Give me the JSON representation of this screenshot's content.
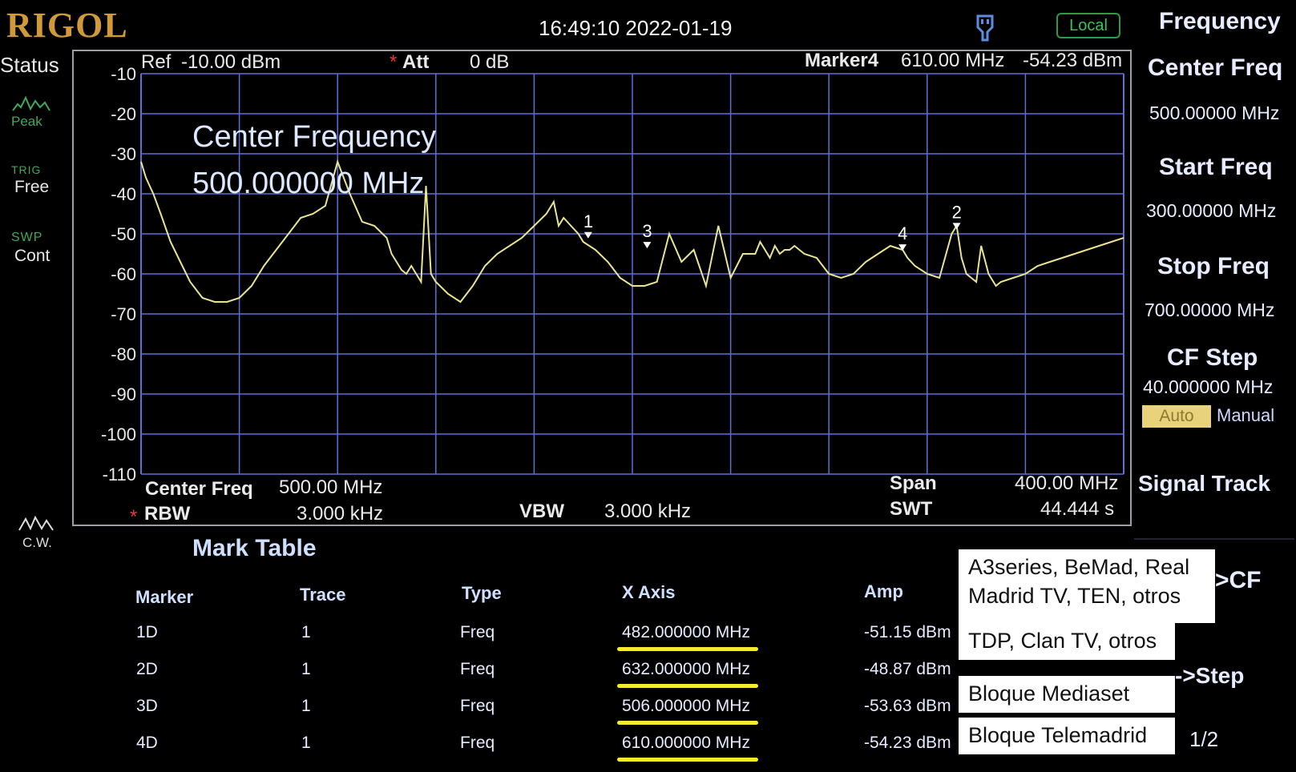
{
  "header": {
    "logo": "RIGOL",
    "datetime": "16:49:10 2022-01-19",
    "local_badge": "Local"
  },
  "status_panel": {
    "title": "Status",
    "peak_label": "Peak",
    "trig_small": "TRIG",
    "trig_value": "Free",
    "swp_small": "SWP",
    "swp_value": "Cont",
    "cw_label": "C.W."
  },
  "screen": {
    "ref_label": "Ref",
    "ref_value": "-10.00 dBm",
    "att_star": "*",
    "att_label": "Att",
    "att_value": "0 dB",
    "marker_label": "Marker4",
    "marker_freq": "610.00 MHz",
    "marker_amp": "-54.23 dBm",
    "overlay_title": "Center Frequency",
    "overlay_value": "500.000000 MHz",
    "bottom": {
      "cf_label": "Center Freq",
      "cf_value": "500.00 MHz",
      "rbw_star": "*",
      "rbw_label": "RBW",
      "rbw_value": "3.000 kHz",
      "vbw_label": "VBW",
      "vbw_value": "3.000 kHz",
      "span_label": "Span",
      "span_value": "400.00 MHz",
      "swt_label": "SWT",
      "swt_value": "44.444 s"
    }
  },
  "chart_data": {
    "type": "line",
    "xlim": [
      300,
      700
    ],
    "ylim": [
      -110,
      -10
    ],
    "y_ticks": [
      -10,
      -20,
      -30,
      -40,
      -50,
      -60,
      -70,
      -80,
      -90,
      -100,
      -110
    ],
    "grid": true,
    "series": [
      {
        "x": [
          300,
          302,
          305,
          308,
          312,
          316,
          320,
          325,
          330,
          335,
          340,
          345,
          350,
          355,
          360,
          365,
          370,
          375,
          380,
          385,
          390,
          395,
          400,
          402,
          404,
          406,
          408,
          410,
          412,
          414,
          416,
          418,
          420,
          425,
          430,
          435,
          440,
          445,
          450,
          455,
          460,
          465,
          468,
          470,
          472,
          475,
          478,
          480,
          485,
          490,
          495,
          500,
          505,
          510,
          515,
          520,
          525,
          530,
          535,
          540,
          545,
          550,
          552,
          554,
          556,
          558,
          560,
          562,
          564,
          566,
          568,
          570,
          575,
          580,
          585,
          590,
          595,
          600,
          605,
          610,
          612,
          615,
          620,
          625,
          630,
          632,
          634,
          636,
          640,
          642,
          645,
          648,
          650,
          655,
          660,
          665,
          670,
          675,
          680,
          685,
          690,
          695,
          700
        ],
        "y": [
          -32,
          -36,
          -40,
          -45,
          -52,
          -57,
          -62,
          -66,
          -67,
          -67,
          -66,
          -63,
          -58,
          -54,
          -50,
          -46,
          -45,
          -43,
          -32,
          -40,
          -47,
          -48,
          -51,
          -55,
          -57,
          -59,
          -60,
          -58,
          -60,
          -62,
          -38,
          -60,
          -62,
          -65,
          -67,
          -63,
          -58,
          -55,
          -53,
          -51,
          -48,
          -45,
          -42,
          -48,
          -46,
          -48,
          -50,
          -52,
          -54,
          -57,
          -61,
          -63,
          -63,
          -62,
          -50,
          -57,
          -54,
          -63,
          -48,
          -61,
          -55,
          -55,
          -52,
          -54,
          -56,
          -53,
          -55,
          -54,
          -54,
          -53,
          -54,
          -55,
          -56,
          -60,
          -61,
          -60,
          -57,
          -55,
          -53,
          -54,
          -56,
          -58,
          -60,
          -61,
          -50,
          -48,
          -56,
          -60,
          -62,
          -53,
          -60,
          -63,
          -62,
          -61,
          -60,
          -58,
          -57,
          -56,
          -55,
          -54,
          -53,
          -52,
          -51
        ]
      }
    ],
    "markers": [
      {
        "label": "1",
        "x": 482,
        "y": -51.15
      },
      {
        "label": "2",
        "x": 632,
        "y": -48.87
      },
      {
        "label": "3",
        "x": 506,
        "y": -53.63
      },
      {
        "label": "4",
        "x": 610,
        "y": -54.23
      }
    ]
  },
  "menu": {
    "title": "Frequency",
    "center_freq_label": "Center Freq",
    "center_freq_value": "500.00000 MHz",
    "start_freq_label": "Start Freq",
    "start_freq_value": "300.00000 MHz",
    "stop_freq_label": "Stop Freq",
    "stop_freq_value": "700.00000 MHz",
    "cf_step_label": "CF Step",
    "cf_step_value": "40.000000 MHz",
    "auto_label": "Auto",
    "manual_label": "Manual",
    "signal_track_label": "Signal Track",
    "to_cf_label": ">CF",
    "to_step_label": "->Step",
    "page_label": "1/2"
  },
  "mark_table": {
    "title": "Mark Table",
    "headers": [
      "Marker",
      "Trace",
      "Type",
      "X Axis",
      "Amp"
    ],
    "rows": [
      [
        "1D",
        "1",
        "Freq",
        "482.000000 MHz",
        "-51.15 dBm"
      ],
      [
        "2D",
        "1",
        "Freq",
        "632.000000 MHz",
        "-48.87 dBm"
      ],
      [
        "3D",
        "1",
        "Freq",
        "506.000000 MHz",
        "-53.63 dBm"
      ],
      [
        "4D",
        "1",
        "Freq",
        "610.000000 MHz",
        "-54.23 dBm"
      ]
    ]
  },
  "annotations": {
    "a1_line1": "A3series, BeMad, Real",
    "a1_line2": "Madrid TV, TEN, otros",
    "a2": "TDP, Clan TV, otros",
    "a3": "Bloque Mediaset",
    "a4": "Bloque Telemadrid"
  },
  "colors": {
    "trace": "#e9e48f",
    "grid": "#5f6fd8",
    "highlight": "#f7ea2a"
  }
}
